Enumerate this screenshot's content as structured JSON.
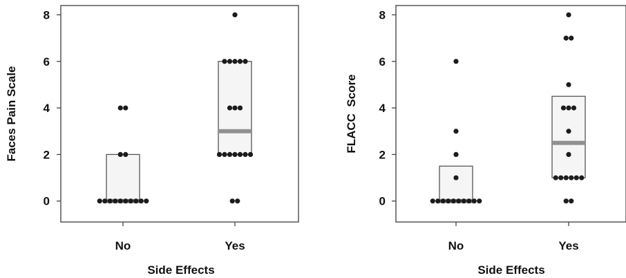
{
  "chart_data": [
    {
      "type": "box-dot",
      "title": "",
      "xlabel": "Side Effects",
      "ylabel": "Faces Pain Scale",
      "categories": [
        "No",
        "Yes"
      ],
      "yticks": [
        "0",
        "2",
        "4",
        "6",
        "8"
      ],
      "ylim": [
        -0.9,
        8.4
      ],
      "boxes": [
        {
          "category": "No",
          "q1": 0,
          "median": 0,
          "q3": 2
        },
        {
          "category": "Yes",
          "q1": 2,
          "median": 3,
          "q3": 6
        }
      ],
      "points": [
        {
          "category": "No",
          "y": 0,
          "count": 10
        },
        {
          "category": "No",
          "y": 2,
          "count": 2
        },
        {
          "category": "No",
          "y": 4,
          "count": 2
        },
        {
          "category": "Yes",
          "y": 0,
          "count": 2
        },
        {
          "category": "Yes",
          "y": 2,
          "count": 7
        },
        {
          "category": "Yes",
          "y": 4,
          "count": 3
        },
        {
          "category": "Yes",
          "y": 6,
          "count": 5
        },
        {
          "category": "Yes",
          "y": 8,
          "count": 1
        }
      ]
    },
    {
      "type": "box-dot",
      "title": "",
      "xlabel": "Side Effects",
      "ylabel": "FLACC  Score",
      "categories": [
        "No",
        "Yes"
      ],
      "yticks": [
        "0",
        "2",
        "4",
        "6",
        "8"
      ],
      "ylim": [
        -0.9,
        8.4
      ],
      "boxes": [
        {
          "category": "No",
          "q1": 0,
          "median": 0,
          "q3": 1.5
        },
        {
          "category": "Yes",
          "q1": 1,
          "median": 2.5,
          "q3": 4.5
        }
      ],
      "points": [
        {
          "category": "No",
          "y": 0,
          "count": 10
        },
        {
          "category": "No",
          "y": 1,
          "count": 1
        },
        {
          "category": "No",
          "y": 2,
          "count": 1
        },
        {
          "category": "No",
          "y": 3,
          "count": 1
        },
        {
          "category": "No",
          "y": 6,
          "count": 1
        },
        {
          "category": "Yes",
          "y": 0,
          "count": 2
        },
        {
          "category": "Yes",
          "y": 1,
          "count": 6
        },
        {
          "category": "Yes",
          "y": 2,
          "count": 1
        },
        {
          "category": "Yes",
          "y": 3,
          "count": 1
        },
        {
          "category": "Yes",
          "y": 4,
          "count": 3
        },
        {
          "category": "Yes",
          "y": 5,
          "count": 1
        },
        {
          "category": "Yes",
          "y": 7,
          "count": 2
        },
        {
          "category": "Yes",
          "y": 8,
          "count": 1
        }
      ]
    }
  ]
}
